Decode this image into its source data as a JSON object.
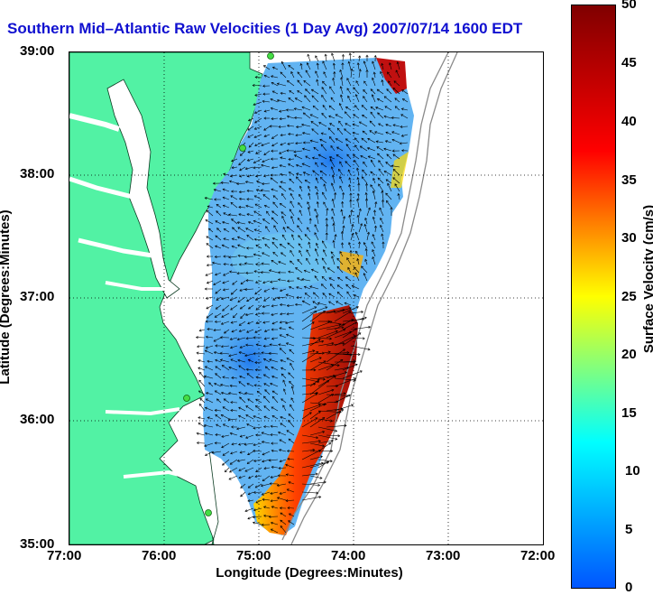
{
  "title": "Southern Mid–Atlantic Raw Velocities (1 Day Avg) 2007/07/14 1600 EDT",
  "x_axis": {
    "label": "Longitude (Degrees:Minutes)",
    "ticks": [
      "77:00",
      "76:00",
      "75:00",
      "74:00",
      "73:00",
      "72:00"
    ]
  },
  "y_axis": {
    "label": "Latitude (Degrees:Minutes)",
    "ticks": [
      "39:00",
      "38:00",
      "37:00",
      "36:00",
      "35:00"
    ]
  },
  "colorbar": {
    "label": "Surface Velocity (cm/s)",
    "ticks": [
      "50",
      "45",
      "40",
      "35",
      "30",
      "25",
      "20",
      "15",
      "10",
      "5",
      "0"
    ],
    "min": 0,
    "max": 50,
    "colors": [
      "#0055ff",
      "#00ffff",
      "#ffff00",
      "#ff0000",
      "#800000"
    ]
  },
  "map": {
    "land_color": "#52f2a4",
    "water_color": "#ffffff",
    "station_color": "#44dd44",
    "lon_range": [
      "77:00",
      "72:00"
    ],
    "lat_range": [
      "35:00",
      "39:00"
    ]
  }
}
